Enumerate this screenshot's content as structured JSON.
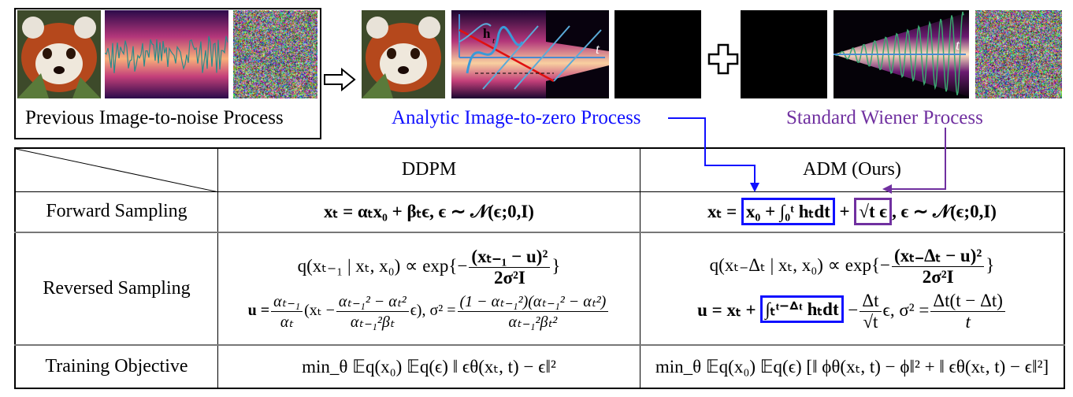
{
  "top": {
    "previous_label": "Previous Image-to-noise Process",
    "analytic_label": "Analytic Image-to-zero Process",
    "wiener_label": "Standard Wiener Process",
    "plot_h_label": "h",
    "plot_h_sub": "t",
    "plot_t_label": "t",
    "colors": {
      "analytic": "#1010ff",
      "wiener": "#7030a0"
    }
  },
  "table": {
    "columns": [
      "",
      "DDPM",
      "ADM (Ours)"
    ],
    "rows": [
      {
        "label": "Forward Sampling",
        "ddpm": "xₜ = αₜx₀ + βₜϵ, ϵ ∼ 𝒩(ϵ;0,I)",
        "adm_prefix": "xₜ = ",
        "adm_blue": "x₀ + ∫₀ᵗ hₜdt",
        "adm_plus": " + ",
        "adm_purple": "√t ϵ",
        "adm_suffix": ", ϵ ∼ 𝒩(ϵ;0,I)"
      },
      {
        "label": "Reversed Sampling",
        "ddpm_q": "q(xₜ₋₁ | xₜ, x₀) ∝ exp{−",
        "ddpm_q_num": "(xₜ₋₁ − u)²",
        "ddpm_q_den": "2σ²I",
        "ddpm_q_end": "}",
        "ddpm_u1": "u =",
        "ddpm_u_f1_num": "αₜ₋₁",
        "ddpm_u_f1_den": "αₜ",
        "ddpm_u2": "(xₜ −",
        "ddpm_u_f2_num": "αₜ₋₁² − αₜ²",
        "ddpm_u_f2_den": "αₜ₋₁²βₜ",
        "ddpm_u3": "ϵ), σ² =",
        "ddpm_u_f3_num": "(1 − αₜ₋₁²)(αₜ₋₁² − αₜ²)",
        "ddpm_u_f3_den": "αₜ₋₁²βₜ²",
        "adm_q": "q(xₜ₋Δₜ | xₜ, x₀) ∝ exp{−",
        "adm_q_num": "(xₜ₋Δₜ − u)²",
        "adm_q_den": "2σ²I",
        "adm_q_end": "}",
        "adm_u1": "u = xₜ + ",
        "adm_u_blue": "∫ₜᵗ⁻ᐞᵗ hₜdt",
        "adm_u2": " −",
        "adm_u_f1_num": "Δt",
        "adm_u_f1_den": "√t",
        "adm_u3": "ϵ, σ² =",
        "adm_u_f2_num": "Δt(t − Δt)",
        "adm_u_f2_den": "t"
      },
      {
        "label": "Training Objective",
        "ddpm": "min_θ 𝔼q(x₀) 𝔼q(ϵ) ‖ ϵθ(xₜ, t) − ϵ‖²",
        "adm": "min_θ 𝔼q(x₀) 𝔼q(ϵ) [‖ ϕθ(xₜ, t) − ϕ‖² + ‖ ϵθ(xₜ, t) − ϵ‖²]"
      }
    ]
  }
}
